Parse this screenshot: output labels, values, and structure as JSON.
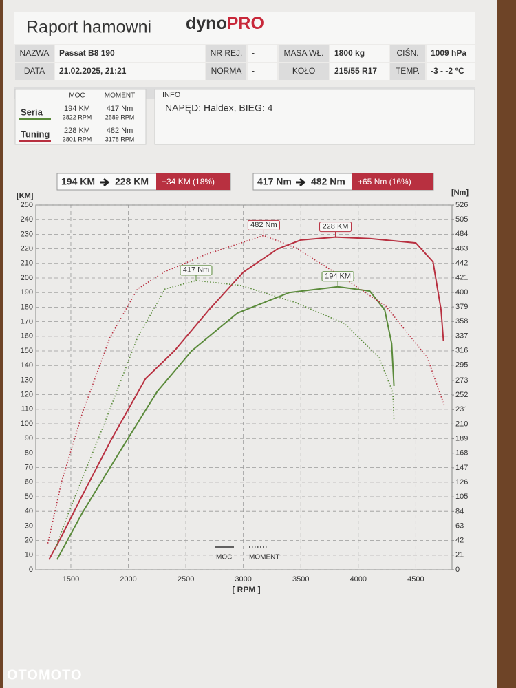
{
  "header": {
    "title": "Raport hamowni",
    "brand_a": "dyno",
    "brand_b": "PRO"
  },
  "info_table": {
    "rows": [
      [
        "NAZWA",
        "Passat B8 190",
        "NR REJ.",
        "-",
        "MASA WŁ.",
        "1800 kg",
        "CIŚN.",
        "1009 hPa"
      ],
      [
        "DATA",
        "21.02.2025, 21:21",
        "NORMA",
        "-",
        "KOŁO",
        "215/55 R17",
        "TEMP.",
        "-3 - -2 °C"
      ]
    ]
  },
  "summary": {
    "headers": [
      "MOC",
      "MOMENT"
    ],
    "rows": [
      {
        "name": "Seria",
        "color": "#5a8a3a",
        "power": "194 KM",
        "power_rpm": "3822 RPM",
        "torque": "417 Nm",
        "torque_rpm": "2589 RPM"
      },
      {
        "name": "Tuning",
        "color": "#b83040",
        "power": "228 KM",
        "power_rpm": "3801 RPM",
        "torque": "482 Nm",
        "torque_rpm": "3178 RPM"
      }
    ]
  },
  "info": {
    "label": "INFO",
    "text": "NAPĘD: Haldex,  BIEG: 4"
  },
  "comparison": [
    {
      "from": "194 KM",
      "to": "228 KM",
      "delta": "+34 KM  (18%)"
    },
    {
      "from": "417 Nm",
      "to": "482 Nm",
      "delta": "+65 Nm  (16%)"
    }
  ],
  "watermark": "OTOMOTO",
  "chart_data": {
    "type": "line",
    "y_label": "[KM]",
    "y2_label": "[Nm]",
    "x_label": "[ RPM ]",
    "xlim": [
      1195,
      4815
    ],
    "xticks": [
      1500,
      2000,
      2500,
      3000,
      3500,
      4000,
      4500
    ],
    "ylim": [
      0,
      250
    ],
    "yticks": [
      0,
      10,
      20,
      30,
      40,
      50,
      60,
      70,
      80,
      90,
      100,
      110,
      120,
      130,
      140,
      150,
      160,
      170,
      180,
      190,
      200,
      210,
      220,
      230,
      240,
      250
    ],
    "y2lim": [
      0,
      526
    ],
    "y2ticks": [
      0,
      21,
      42,
      63,
      84,
      105,
      126,
      147,
      168,
      189,
      210,
      231,
      252,
      273,
      295,
      316,
      337,
      358,
      379,
      400,
      421,
      442,
      463,
      484,
      505,
      526
    ],
    "grid": true,
    "legend": [
      {
        "label": "MOC",
        "dash": "solid"
      },
      {
        "label": "MOMENT",
        "dash": "dotted"
      }
    ],
    "series": [
      {
        "color": "#5a8a3a",
        "dash": "solid",
        "axis": "y",
        "x": [
          1380,
          1600,
          1950,
          2250,
          2550,
          2950,
          3400,
          3822,
          4100,
          4230,
          4290,
          4310
        ],
        "values": [
          7,
          39,
          84,
          122,
          150,
          176,
          190,
          194,
          191,
          178,
          155,
          126
        ]
      },
      {
        "color": "#b83040",
        "dash": "solid",
        "axis": "y",
        "x": [
          1310,
          1400,
          1600,
          1850,
          2150,
          2400,
          2700,
          3000,
          3300,
          3500,
          3801,
          4100,
          4500,
          4650,
          4720,
          4740
        ],
        "values": [
          7,
          20,
          51,
          89,
          131,
          150,
          178,
          204,
          220,
          226,
          228,
          227,
          224,
          211,
          178,
          157
        ]
      },
      {
        "color": "#5a8a3a",
        "dash": "dotted",
        "axis": "y2",
        "x": [
          1360,
          1480,
          1780,
          2080,
          2320,
          2589,
          2980,
          3460,
          3880,
          4180,
          4300,
          4310
        ],
        "values": [
          28,
          82,
          206,
          335,
          405,
          417,
          410,
          385,
          355,
          306,
          256,
          216
        ]
      },
      {
        "color": "#b83040",
        "dash": "dotted",
        "axis": "y2",
        "x": [
          1300,
          1420,
          1600,
          1840,
          2080,
          2320,
          2680,
          3178,
          3460,
          3880,
          4240,
          4600,
          4750
        ],
        "values": [
          38,
          127,
          226,
          335,
          405,
          430,
          455,
          482,
          464,
          420,
          380,
          306,
          236
        ]
      }
    ],
    "annotations": [
      {
        "text": "482 Nm",
        "x": 3178,
        "y": 482,
        "axis": "y2",
        "color": "#b83040"
      },
      {
        "text": "228 KM",
        "x": 3801,
        "y": 228,
        "axis": "y",
        "color": "#b83040"
      },
      {
        "text": "417 Nm",
        "x": 2589,
        "y": 417,
        "axis": "y2",
        "color": "#5a8a3a"
      },
      {
        "text": "194 KM",
        "x": 3822,
        "y": 194,
        "axis": "y",
        "color": "#5a8a3a"
      }
    ]
  }
}
